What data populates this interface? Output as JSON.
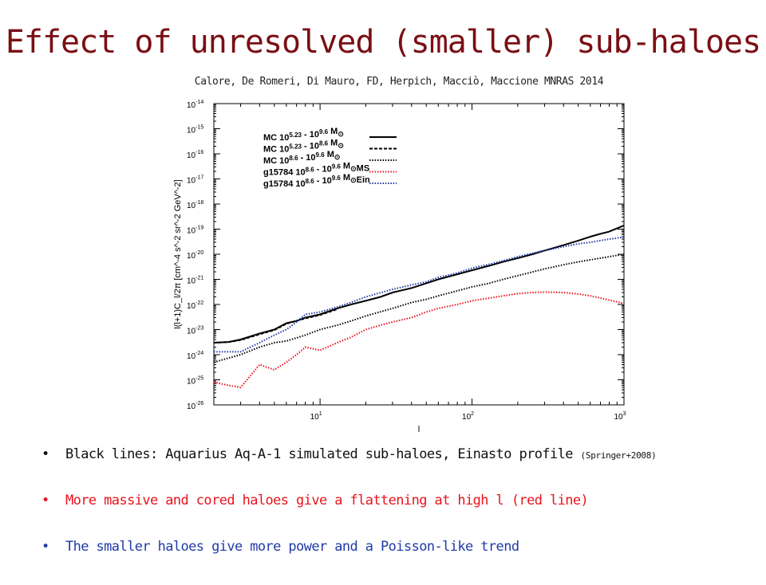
{
  "slide": {
    "title": "Effect of unresolved (smaller) sub-haloes",
    "citation": "Calore, De Romeri, Di Mauro, FD, Herpich, Macciò, Maccione MNRAS 2014"
  },
  "bullets": [
    {
      "text": "Black lines: Aquarius Aq-A-1 simulated sub-haloes, Einasto profile",
      "cite": "(Springer+2008)",
      "color": "#111111"
    },
    {
      "text": "More massive and cored haloes give a flattening at high l (red line)",
      "cite": "",
      "color": "#e8131c"
    },
    {
      "text": "The smaller haloes give more power and a Poisson-like trend",
      "cite": "",
      "color": "#1f3aa8"
    }
  ],
  "chart_data": {
    "type": "line",
    "xscale": "log",
    "yscale": "log",
    "xlim": [
      2,
      1000
    ],
    "ylim": [
      1e-26,
      1e-14
    ],
    "xlabel": "l",
    "ylabel": "l(l+1)C_l/2π [cm^-4 s^-2 sr^-2 GeV^-2]",
    "x_ticks": [
      {
        "value": 10,
        "label": "10",
        "exp": "1"
      },
      {
        "value": 100,
        "label": "10",
        "exp": "2"
      },
      {
        "value": 1000,
        "label": "10",
        "exp": "3"
      }
    ],
    "y_ticks": [
      {
        "value": 1e-14,
        "label": "10",
        "exp": "-14"
      },
      {
        "value": 1e-15,
        "label": "10",
        "exp": "-15"
      },
      {
        "value": 1e-16,
        "label": "10",
        "exp": "-16"
      },
      {
        "value": 1e-17,
        "label": "10",
        "exp": "-17"
      },
      {
        "value": 1e-18,
        "label": "10",
        "exp": "-18"
      },
      {
        "value": 1e-19,
        "label": "10",
        "exp": "-19"
      },
      {
        "value": 1e-20,
        "label": "10",
        "exp": "-20"
      },
      {
        "value": 1e-21,
        "label": "10",
        "exp": "-21"
      },
      {
        "value": 1e-22,
        "label": "10",
        "exp": "-22"
      },
      {
        "value": 1e-23,
        "label": "10",
        "exp": "-23"
      },
      {
        "value": 1e-24,
        "label": "10",
        "exp": "-24"
      },
      {
        "value": 1e-25,
        "label": "10",
        "exp": "-25"
      },
      {
        "value": 1e-26,
        "label": "10",
        "exp": "-26"
      }
    ],
    "legend_position": "top-left",
    "series": [
      {
        "name": "MC 10^5.23 - 10^9.6 M⊙",
        "legend_parts": [
          [
            "MC 10",
            ""
          ],
          [
            "5.23",
            "sup"
          ],
          [
            " - 10",
            ""
          ],
          [
            "9.6",
            "sup"
          ],
          [
            " M",
            ""
          ],
          [
            "⊙",
            "sub"
          ]
        ],
        "color": "#000000",
        "style": "solid",
        "x": [
          2,
          2.5,
          3,
          4,
          5,
          6,
          7,
          8,
          10,
          13,
          16,
          20,
          25,
          30,
          40,
          50,
          60,
          80,
          100,
          130,
          160,
          200,
          250,
          300,
          400,
          500,
          600,
          700,
          800,
          1000
        ],
        "y": [
          3e-24,
          3.2e-24,
          4e-24,
          7e-24,
          1e-23,
          1.8e-23,
          2.2e-23,
          3e-23,
          4e-23,
          7e-23,
          1e-22,
          1.4e-22,
          2e-22,
          3e-22,
          4.5e-22,
          7e-22,
          1e-21,
          1.6e-21,
          2.3e-21,
          3.5e-21,
          5e-21,
          7e-21,
          1e-20,
          1.4e-20,
          2.3e-20,
          3.5e-20,
          5e-20,
          6.5e-20,
          8e-20,
          1.4e-19
        ]
      },
      {
        "name": "MC 10^5.23 - 10^8.6 M⊙",
        "legend_parts": [
          [
            "MC 10",
            ""
          ],
          [
            "5.23",
            "sup"
          ],
          [
            " - 10",
            ""
          ],
          [
            "8.6",
            "sup"
          ],
          [
            " M",
            ""
          ],
          [
            "⊙",
            "sub"
          ]
        ],
        "color": "#000000",
        "style": "dashed",
        "x": [
          2,
          2.5,
          3,
          4,
          5,
          6,
          8,
          10,
          13
        ],
        "y": [
          3e-24,
          3.2e-24,
          3.8e-24,
          6.5e-24,
          9.5e-24,
          1.7e-23,
          2.8e-23,
          3.8e-23,
          6.5e-23
        ]
      },
      {
        "name": "MC 10^8.6 - 10^9.6 M⊙",
        "legend_parts": [
          [
            "MC 10",
            ""
          ],
          [
            "8.6",
            "sup"
          ],
          [
            " - 10",
            ""
          ],
          [
            "9.6",
            "sup"
          ],
          [
            " M",
            ""
          ],
          [
            "⊙",
            "sub"
          ]
        ],
        "color": "#000000",
        "style": "dotted",
        "x": [
          2,
          3,
          4,
          5,
          6,
          8,
          10,
          13,
          16,
          20,
          30,
          40,
          50,
          60,
          80,
          100,
          130,
          160,
          200,
          300,
          400,
          500,
          700,
          1000
        ],
        "y": [
          5e-25,
          1e-24,
          2e-24,
          3e-24,
          3.5e-24,
          6e-24,
          1e-23,
          1.5e-23,
          2.2e-23,
          3.5e-23,
          7e-23,
          1.2e-22,
          1.6e-22,
          2.2e-22,
          3.5e-22,
          5e-22,
          7e-22,
          1e-21,
          1.4e-21,
          2.6e-21,
          3.8e-21,
          5e-21,
          7e-21,
          1e-20
        ]
      },
      {
        "name": "g15784 10^8.6 - 10^9.6 M⊙MS",
        "legend_parts": [
          [
            "g15784 10",
            ""
          ],
          [
            "8.6",
            "sup"
          ],
          [
            " - 10",
            ""
          ],
          [
            "9.6",
            "sup"
          ],
          [
            " M",
            ""
          ],
          [
            "⊙",
            "sub"
          ],
          [
            "MS",
            ""
          ]
        ],
        "color": "#e8131c",
        "style": "dotted",
        "x": [
          2,
          2.5,
          3,
          3.5,
          4,
          5,
          6,
          7,
          8,
          10,
          13,
          16,
          20,
          25,
          30,
          40,
          50,
          60,
          80,
          100,
          130,
          160,
          200,
          250,
          300,
          400,
          500,
          600,
          700,
          800,
          1000
        ],
        "y": [
          8e-26,
          6e-26,
          5e-26,
          1.5e-25,
          4e-25,
          2.5e-25,
          5e-25,
          1e-24,
          2e-24,
          1.5e-24,
          3e-24,
          5e-24,
          1e-23,
          1.5e-23,
          2e-23,
          3e-23,
          5e-23,
          7e-23,
          1e-22,
          1.4e-22,
          1.8e-22,
          2.2e-22,
          2.7e-22,
          3e-22,
          3.1e-22,
          3e-22,
          2.6e-22,
          2.2e-22,
          1.8e-22,
          1.5e-22,
          1.1e-22
        ]
      },
      {
        "name": "g15784 10^8.6 - 10^9.6 M⊙Ein",
        "legend_parts": [
          [
            "g15784 10",
            ""
          ],
          [
            "8.6",
            "sup"
          ],
          [
            " - 10",
            ""
          ],
          [
            "9.6",
            "sup"
          ],
          [
            " M",
            ""
          ],
          [
            "⊙",
            "sub"
          ],
          [
            "Ein",
            ""
          ]
        ],
        "color": "#1f3aa8",
        "style": "dotted",
        "x": [
          2,
          3,
          4,
          5,
          6,
          7,
          8,
          10,
          13,
          16,
          20,
          30,
          40,
          50,
          60,
          80,
          100,
          130,
          160,
          200,
          250,
          300,
          400,
          500,
          600,
          800,
          1000
        ],
        "y": [
          1.3e-24,
          1.3e-24,
          3e-24,
          6e-24,
          1e-23,
          2e-23,
          4e-23,
          5e-23,
          8e-23,
          1.2e-22,
          2e-22,
          4e-22,
          6e-22,
          8e-22,
          1.2e-21,
          1.8e-21,
          2.8e-21,
          4e-21,
          5.5e-21,
          8e-21,
          1.1e-20,
          1.4e-20,
          2e-20,
          2.6e-20,
          3e-20,
          4e-20,
          4.8e-20
        ]
      }
    ]
  }
}
